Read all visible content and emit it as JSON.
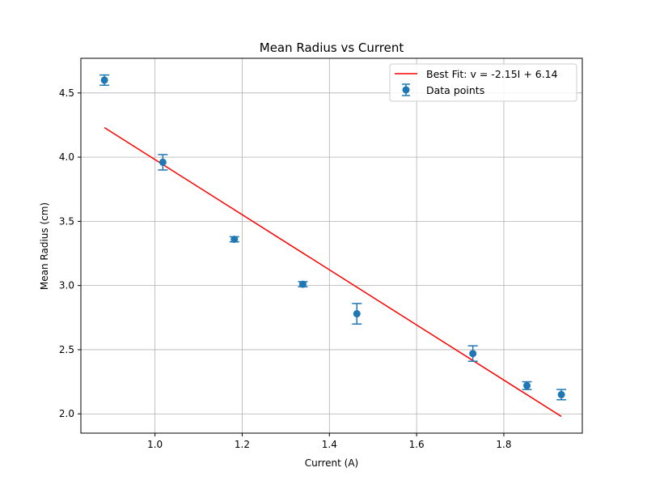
{
  "chart_data": {
    "type": "scatter",
    "title": "Mean Radius vs Current",
    "xlabel": "Current (A)",
    "ylabel": "Mean Radius (cm)",
    "xlim": [
      0.83,
      1.98
    ],
    "ylim": [
      1.85,
      4.77
    ],
    "xticks": [
      1.0,
      1.2,
      1.4,
      1.6,
      1.8
    ],
    "xtick_labels": [
      "1.0",
      "1.2",
      "1.4",
      "1.6",
      "1.8"
    ],
    "yticks": [
      2.0,
      2.5,
      3.0,
      3.5,
      4.0,
      4.5
    ],
    "ytick_labels": [
      "2.0",
      "2.5",
      "3.0",
      "3.5",
      "4.0",
      "4.5"
    ],
    "grid": true,
    "legend_position": "top-right",
    "series": [
      {
        "name": "Data points",
        "kind": "errorbar",
        "color": "#1f77b4",
        "x": [
          0.884,
          1.018,
          1.182,
          1.339,
          1.463,
          1.729,
          1.853,
          1.932
        ],
        "y": [
          4.6,
          3.96,
          3.36,
          3.01,
          2.78,
          2.47,
          2.22,
          2.15
        ],
        "yerr": [
          0.04,
          0.06,
          0.02,
          0.02,
          0.08,
          0.06,
          0.03,
          0.04
        ]
      },
      {
        "name": "Best Fit: v = -2.15I + 6.14",
        "kind": "line",
        "color": "#ff0000",
        "x": [
          0.884,
          1.932
        ],
        "y": [
          4.23,
          1.98
        ]
      }
    ]
  }
}
